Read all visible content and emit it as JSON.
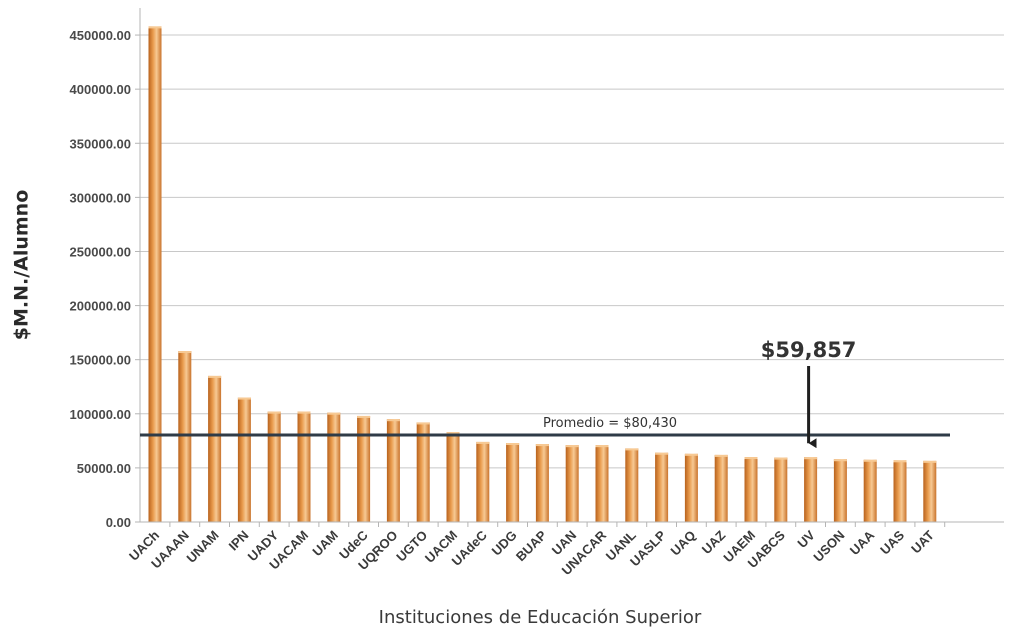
{
  "chart_data": {
    "type": "bar",
    "title": "",
    "xlabel": "Instituciones de Educación Superior",
    "ylabel": "$M.N./Alumno",
    "ylim": [
      0,
      475000
    ],
    "yticks": [
      0,
      50000,
      100000,
      150000,
      200000,
      250000,
      300000,
      350000,
      400000,
      450000
    ],
    "ytick_labels": [
      "0.00",
      "50000.00",
      "100000.00",
      "150000.00",
      "200000.00",
      "250000.00",
      "300000.00",
      "350000.00",
      "400000.00",
      "450000.00"
    ],
    "grid": true,
    "legend": "none",
    "categories": [
      "UACh",
      "UAAAN",
      "UNAM",
      "IPN",
      "UADY",
      "UACAM",
      "UAM",
      "UdeC",
      "UQROO",
      "UGTO",
      "UACM",
      "UAdeC",
      "UDG",
      "BUAP",
      "UAN",
      "UNACAR",
      "UANL",
      "UASLP",
      "UAQ",
      "UAZ",
      "UAEM",
      "UABCS",
      "UV",
      "USON",
      "UAA",
      "UAS",
      "UAT"
    ],
    "values": [
      458000,
      158000,
      135000,
      115000,
      102000,
      102000,
      101000,
      98000,
      95000,
      92000,
      83000,
      74000,
      73000,
      72000,
      71000,
      71000,
      68000,
      64000,
      63000,
      62000,
      60000,
      59500,
      59857,
      58000,
      57500,
      57000,
      56500
    ],
    "reference_line": {
      "value": 80430,
      "label": "Promedio = $80,430"
    },
    "annotation": {
      "category": "UV",
      "label": "$59,857"
    },
    "colors": {
      "bar": "#e99b4d",
      "bar_dark": "#b8621d",
      "bar_light": "#f7c993",
      "reference_line": "#2f3b47",
      "arrow": "#1f1f1f"
    }
  }
}
